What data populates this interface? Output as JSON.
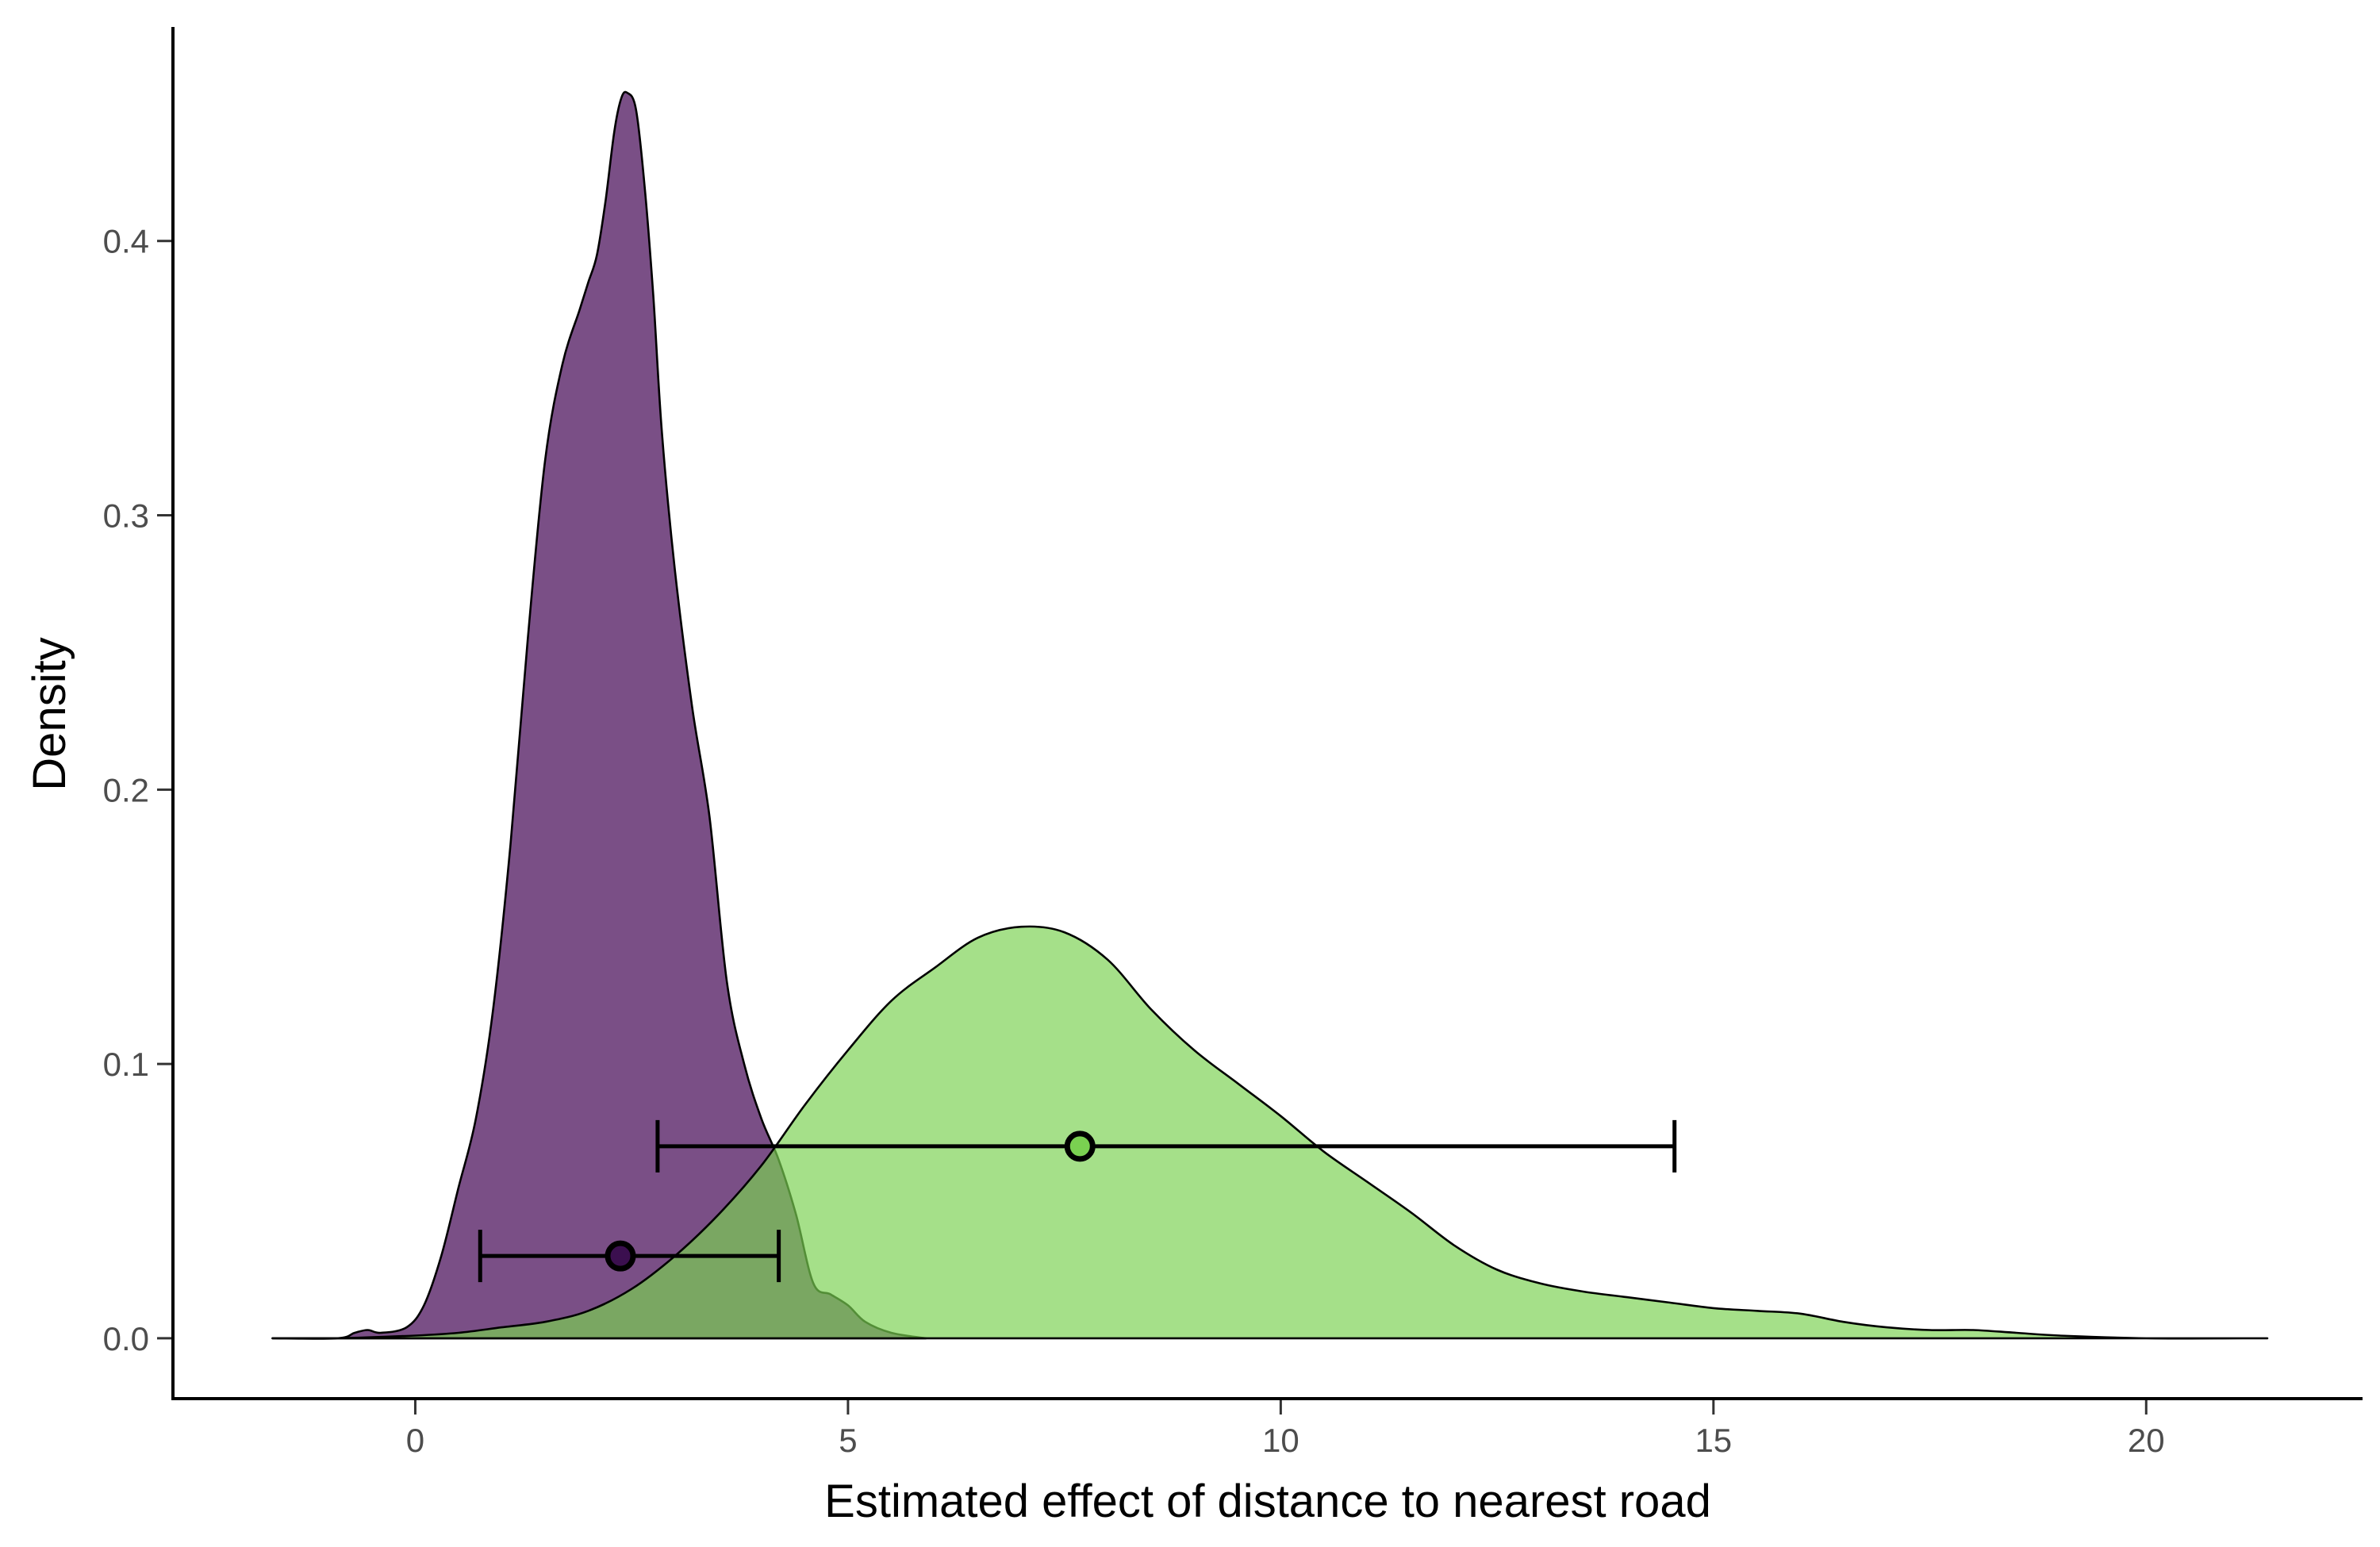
{
  "chart_data": {
    "type": "area",
    "title": "",
    "xlabel": "Estimated effect of distance to nearest road",
    "ylabel": "Density",
    "xlim": [
      -2.8,
      22.5
    ],
    "ylim": [
      -0.022,
      0.478
    ],
    "x_ticks": [
      0,
      5,
      10,
      15,
      20
    ],
    "y_ticks": [
      0.0,
      0.1,
      0.2,
      0.3,
      0.4
    ],
    "x_tick_labels": [
      "0",
      "5",
      "10",
      "15",
      "20"
    ],
    "y_tick_labels": [
      "0.0",
      "0.1",
      "0.2",
      "0.3",
      "0.4"
    ],
    "grid": false,
    "legend": "none",
    "series": [
      {
        "color": "#7A4F86",
        "opacity": 1.0,
        "points": [
          [
            -1.65,
            0.0
          ],
          [
            -0.9,
            0.0
          ],
          [
            -0.7,
            0.002
          ],
          [
            -0.55,
            0.003
          ],
          [
            -0.4,
            0.002
          ],
          [
            -0.1,
            0.004
          ],
          [
            0.1,
            0.012
          ],
          [
            0.3,
            0.03
          ],
          [
            0.5,
            0.055
          ],
          [
            0.7,
            0.08
          ],
          [
            0.9,
            0.12
          ],
          [
            1.1,
            0.18
          ],
          [
            1.3,
            0.255
          ],
          [
            1.5,
            0.32
          ],
          [
            1.7,
            0.355
          ],
          [
            1.9,
            0.375
          ],
          [
            2.0,
            0.385
          ],
          [
            2.1,
            0.395
          ],
          [
            2.2,
            0.415
          ],
          [
            2.3,
            0.44
          ],
          [
            2.38,
            0.452
          ],
          [
            2.45,
            0.454
          ],
          [
            2.55,
            0.448
          ],
          [
            2.65,
            0.42
          ],
          [
            2.75,
            0.38
          ],
          [
            2.85,
            0.33
          ],
          [
            3.0,
            0.28
          ],
          [
            3.2,
            0.23
          ],
          [
            3.4,
            0.19
          ],
          [
            3.6,
            0.13
          ],
          [
            3.8,
            0.1
          ],
          [
            4.0,
            0.08
          ],
          [
            4.2,
            0.065
          ],
          [
            4.4,
            0.045
          ],
          [
            4.6,
            0.02
          ],
          [
            4.8,
            0.016
          ],
          [
            5.0,
            0.012
          ],
          [
            5.2,
            0.006
          ],
          [
            5.5,
            0.002
          ],
          [
            5.9,
            0.0
          ]
        ]
      },
      {
        "color": "#7AD151",
        "opacity": 0.68,
        "points": [
          [
            -1.65,
            0.0
          ],
          [
            -0.9,
            0.0
          ],
          [
            0.0,
            0.001
          ],
          [
            0.5,
            0.002
          ],
          [
            1.0,
            0.004
          ],
          [
            1.5,
            0.006
          ],
          [
            2.0,
            0.01
          ],
          [
            2.5,
            0.018
          ],
          [
            3.0,
            0.03
          ],
          [
            3.5,
            0.045
          ],
          [
            4.0,
            0.063
          ],
          [
            4.5,
            0.085
          ],
          [
            5.0,
            0.105
          ],
          [
            5.5,
            0.123
          ],
          [
            6.0,
            0.135
          ],
          [
            6.5,
            0.146
          ],
          [
            7.0,
            0.15
          ],
          [
            7.5,
            0.148
          ],
          [
            8.0,
            0.138
          ],
          [
            8.5,
            0.12
          ],
          [
            9.0,
            0.105
          ],
          [
            9.5,
            0.093
          ],
          [
            10.0,
            0.081
          ],
          [
            10.5,
            0.068
          ],
          [
            11.0,
            0.057
          ],
          [
            11.5,
            0.046
          ],
          [
            12.0,
            0.034
          ],
          [
            12.5,
            0.025
          ],
          [
            13.0,
            0.02
          ],
          [
            13.5,
            0.017
          ],
          [
            14.0,
            0.015
          ],
          [
            14.5,
            0.013
          ],
          [
            15.0,
            0.011
          ],
          [
            15.5,
            0.01
          ],
          [
            16.0,
            0.009
          ],
          [
            16.5,
            0.006
          ],
          [
            17.0,
            0.004
          ],
          [
            17.5,
            0.003
          ],
          [
            18.0,
            0.003
          ],
          [
            18.5,
            0.002
          ],
          [
            19.0,
            0.001
          ],
          [
            20.0,
            0.0
          ],
          [
            21.4,
            0.0
          ]
        ]
      }
    ],
    "intervals": [
      {
        "y": 0.03,
        "low": 0.75,
        "point": 2.37,
        "high": 4.2,
        "fill": "#3B0F4F"
      },
      {
        "y": 0.07,
        "low": 2.8,
        "point": 7.68,
        "high": 14.55,
        "fill": "#7AD151"
      }
    ]
  }
}
